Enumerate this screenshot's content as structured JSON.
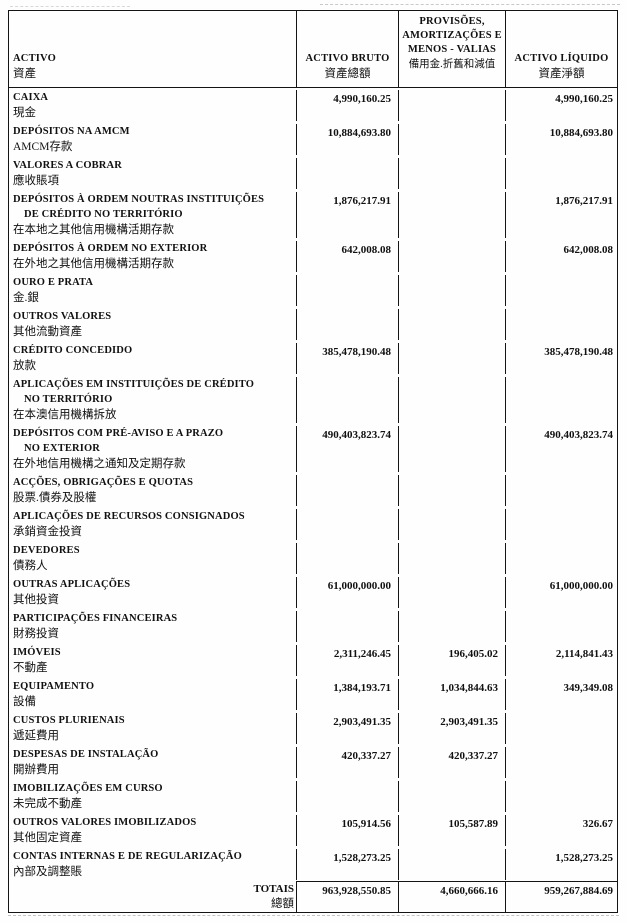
{
  "header": {
    "activo": {
      "pt": "ACTIVO",
      "cn": "資產"
    },
    "bruto": {
      "pt": "ACTIVO BRUTO",
      "cn": "資產總額"
    },
    "provisoes": {
      "line1": "PROVISÕES,",
      "line2": "AMORTIZAÇÕES E",
      "line3": "MENOS - VALIAS",
      "cn": "備用金.折舊和減值"
    },
    "liquido": {
      "pt": "ACTIVO LÍQUIDO",
      "cn": "資產淨額"
    }
  },
  "rows": [
    {
      "pt1": "CAIXA",
      "pt2": "",
      "cn": "現金",
      "bruto": "4,990,160.25",
      "prov": "",
      "liq": "4,990,160.25"
    },
    {
      "pt1": "DEPÓSITOS NA AMCM",
      "pt2": "",
      "cn": "AMCM存款",
      "bruto": "10,884,693.80",
      "prov": "",
      "liq": "10,884,693.80"
    },
    {
      "pt1": "VALORES A COBRAR",
      "pt2": "",
      "cn": "應收賬項",
      "bruto": "",
      "prov": "",
      "liq": ""
    },
    {
      "pt1": "DEPÓSITOS À ORDEM NOUTRAS INSTITUIÇÕES",
      "pt2": "DE CRÉDITO NO TERRITÓRIO",
      "cn": "在本地之其他信用機構活期存款",
      "bruto": "1,876,217.91",
      "prov": "",
      "liq": "1,876,217.91"
    },
    {
      "pt1": "DEPÓSITOS À ORDEM NO EXTERIOR",
      "pt2": "",
      "cn": "在外地之其他信用機構活期存款",
      "bruto": "642,008.08",
      "prov": "",
      "liq": "642,008.08"
    },
    {
      "pt1": "OURO E PRATA",
      "pt2": "",
      "cn": "金.銀",
      "bruto": "",
      "prov": "",
      "liq": ""
    },
    {
      "pt1": "OUTROS VALORES",
      "pt2": "",
      "cn": "其他流動資產",
      "bruto": "",
      "prov": "",
      "liq": ""
    },
    {
      "pt1": "CRÉDITO CONCEDIDO",
      "pt2": "",
      "cn": "放款",
      "bruto": "385,478,190.48",
      "prov": "",
      "liq": "385,478,190.48"
    },
    {
      "pt1": "APLICAÇÕES EM INSTITUIÇÕES DE CRÉDITO",
      "pt2": "NO TERRITÓRIO",
      "cn": "在本澳信用機構拆放",
      "bruto": "",
      "prov": "",
      "liq": ""
    },
    {
      "pt1": "DEPÓSITOS COM PRÉ-AVISO E A PRAZO",
      "pt2": "NO EXTERIOR",
      "cn": "在外地信用機構之通知及定期存款",
      "bruto": "490,403,823.74",
      "prov": "",
      "liq": "490,403,823.74"
    },
    {
      "pt1": "ACÇÕES, OBRIGAÇÕES E QUOTAS",
      "pt2": "",
      "cn": "股票.債券及股權",
      "bruto": "",
      "prov": "",
      "liq": ""
    },
    {
      "pt1": "APLICAÇÕES DE RECURSOS CONSIGNADOS",
      "pt2": "",
      "cn": "承銷資金投資",
      "bruto": "",
      "prov": "",
      "liq": ""
    },
    {
      "pt1": "DEVEDORES",
      "pt2": "",
      "cn": "債務人",
      "bruto": "",
      "prov": "",
      "liq": ""
    },
    {
      "pt1": "OUTRAS APLICAÇÕES",
      "pt2": "",
      "cn": "其他投資",
      "bruto": "61,000,000.00",
      "prov": "",
      "liq": "61,000,000.00"
    },
    {
      "pt1": "PARTICIPAÇÕES FINANCEIRAS",
      "pt2": "",
      "cn": "財務投資",
      "bruto": "",
      "prov": "",
      "liq": ""
    },
    {
      "pt1": "IMÓVEIS",
      "pt2": "",
      "cn": "不動產",
      "bruto": "2,311,246.45",
      "prov": "196,405.02",
      "liq": "2,114,841.43"
    },
    {
      "pt1": "EQUIPAMENTO",
      "pt2": "",
      "cn": "設備",
      "bruto": "1,384,193.71",
      "prov": "1,034,844.63",
      "liq": "349,349.08"
    },
    {
      "pt1": "CUSTOS PLURIENAIS",
      "pt2": "",
      "cn": "遞延費用",
      "bruto": "2,903,491.35",
      "prov": "2,903,491.35",
      "liq": ""
    },
    {
      "pt1": "DESPESAS DE INSTALAÇÃO",
      "pt2": "",
      "cn": "開辦費用",
      "bruto": "420,337.27",
      "prov": "420,337.27",
      "liq": ""
    },
    {
      "pt1": "IMOBILIZAÇÕES EM CURSO",
      "pt2": "",
      "cn": "未完成不動產",
      "bruto": "",
      "prov": "",
      "liq": ""
    },
    {
      "pt1": "OUTROS VALORES IMOBILIZADOS",
      "pt2": "",
      "cn": "其他固定資產",
      "bruto": "105,914.56",
      "prov": "105,587.89",
      "liq": "326.67"
    },
    {
      "pt1": "CONTAS INTERNAS E DE REGULARIZAÇÃO",
      "pt2": "",
      "cn": "內部及調整賬",
      "bruto": "1,528,273.25",
      "prov": "",
      "liq": "1,528,273.25"
    }
  ],
  "totals": {
    "pt": "TOTAIS",
    "cn": "總額",
    "bruto": "963,928,550.85",
    "prov": "4,660,666.16",
    "liq": "959,267,884.69"
  }
}
